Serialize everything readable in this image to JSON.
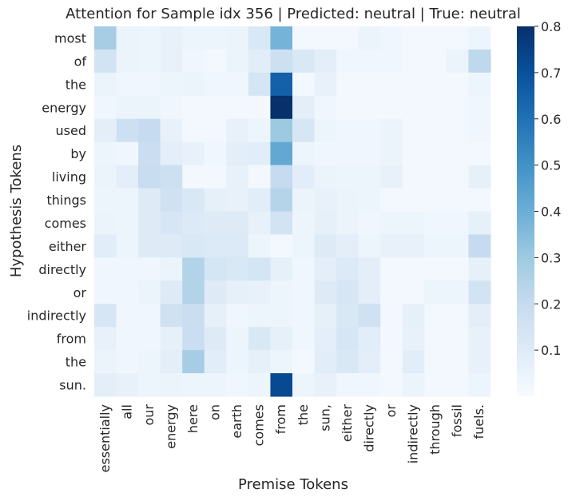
{
  "chart_data": {
    "type": "heatmap",
    "title": "Attention for Sample idx 356 | Predicted: neutral | True: neutral",
    "xlabel": "Premise Tokens",
    "ylabel": "Hypothesis Tokens",
    "x_tokens": [
      "essentially",
      "all",
      "our",
      "energy",
      "here",
      "on",
      "earth",
      "comes",
      "from",
      "the",
      "sun,",
      "either",
      "directly",
      "or",
      "indirectly",
      "through",
      "fossil",
      "fuels."
    ],
    "y_tokens": [
      "most",
      "of",
      "the",
      "energy",
      "used",
      "by",
      "living",
      "things",
      "comes",
      "either",
      "directly",
      "or",
      "indirectly",
      "from",
      "the",
      "sun."
    ],
    "colorbar": {
      "min": 0.0,
      "max": 0.8,
      "ticks": [
        0.1,
        0.2,
        0.3,
        0.4,
        0.5,
        0.6,
        0.7,
        0.8
      ],
      "colormap": "Blues"
    },
    "values": [
      [
        0.28,
        0.05,
        0.04,
        0.06,
        0.04,
        0.04,
        0.05,
        0.12,
        0.38,
        0.02,
        0.02,
        0.02,
        0.05,
        0.03,
        0.02,
        0.02,
        0.02,
        0.04
      ],
      [
        0.15,
        0.05,
        0.04,
        0.06,
        0.03,
        0.02,
        0.05,
        0.09,
        0.17,
        0.12,
        0.08,
        0.03,
        0.03,
        0.03,
        0.02,
        0.02,
        0.05,
        0.22
      ],
      [
        0.05,
        0.03,
        0.03,
        0.04,
        0.05,
        0.03,
        0.03,
        0.14,
        0.65,
        0.02,
        0.06,
        0.02,
        0.02,
        0.02,
        0.02,
        0.02,
        0.02,
        0.04
      ],
      [
        0.03,
        0.05,
        0.05,
        0.03,
        0.02,
        0.02,
        0.02,
        0.02,
        0.8,
        0.08,
        0.03,
        0.02,
        0.02,
        0.02,
        0.02,
        0.02,
        0.02,
        0.03
      ],
      [
        0.08,
        0.17,
        0.2,
        0.06,
        0.02,
        0.02,
        0.06,
        0.04,
        0.3,
        0.13,
        0.04,
        0.03,
        0.03,
        0.05,
        0.02,
        0.02,
        0.02,
        0.03
      ],
      [
        0.04,
        0.03,
        0.18,
        0.08,
        0.06,
        0.03,
        0.08,
        0.09,
        0.42,
        0.04,
        0.03,
        0.03,
        0.03,
        0.05,
        0.02,
        0.02,
        0.02,
        0.02
      ],
      [
        0.05,
        0.08,
        0.19,
        0.17,
        0.02,
        0.02,
        0.06,
        0.02,
        0.2,
        0.09,
        0.05,
        0.04,
        0.04,
        0.06,
        0.02,
        0.02,
        0.02,
        0.07
      ],
      [
        0.04,
        0.04,
        0.1,
        0.16,
        0.12,
        0.07,
        0.06,
        0.09,
        0.24,
        0.05,
        0.06,
        0.05,
        0.04,
        0.02,
        0.02,
        0.02,
        0.02,
        0.02
      ],
      [
        0.05,
        0.04,
        0.1,
        0.13,
        0.11,
        0.1,
        0.1,
        0.06,
        0.15,
        0.04,
        0.07,
        0.05,
        0.03,
        0.04,
        0.04,
        0.03,
        0.03,
        0.07
      ],
      [
        0.09,
        0.04,
        0.1,
        0.1,
        0.12,
        0.11,
        0.11,
        0.04,
        0.02,
        0.04,
        0.1,
        0.08,
        0.04,
        0.06,
        0.06,
        0.04,
        0.04,
        0.2
      ],
      [
        0.03,
        0.03,
        0.03,
        0.05,
        0.25,
        0.14,
        0.12,
        0.14,
        0.07,
        0.03,
        0.08,
        0.11,
        0.08,
        0.02,
        0.02,
        0.02,
        0.02,
        0.07
      ],
      [
        0.03,
        0.03,
        0.05,
        0.1,
        0.25,
        0.1,
        0.07,
        0.06,
        0.04,
        0.03,
        0.1,
        0.13,
        0.08,
        0.02,
        0.02,
        0.04,
        0.04,
        0.15
      ],
      [
        0.13,
        0.03,
        0.03,
        0.16,
        0.18,
        0.07,
        0.03,
        0.04,
        0.04,
        0.03,
        0.07,
        0.12,
        0.16,
        0.02,
        0.07,
        0.02,
        0.02,
        0.08
      ],
      [
        0.06,
        0.03,
        0.03,
        0.07,
        0.18,
        0.1,
        0.04,
        0.12,
        0.07,
        0.03,
        0.08,
        0.13,
        0.09,
        0.02,
        0.06,
        0.02,
        0.02,
        0.06
      ],
      [
        0.05,
        0.03,
        0.04,
        0.08,
        0.28,
        0.09,
        0.04,
        0.07,
        0.04,
        0.02,
        0.09,
        0.12,
        0.08,
        0.02,
        0.09,
        0.02,
        0.02,
        0.06
      ],
      [
        0.08,
        0.06,
        0.04,
        0.05,
        0.04,
        0.04,
        0.03,
        0.04,
        0.72,
        0.04,
        0.06,
        0.03,
        0.03,
        0.02,
        0.05,
        0.02,
        0.02,
        0.04
      ]
    ]
  }
}
